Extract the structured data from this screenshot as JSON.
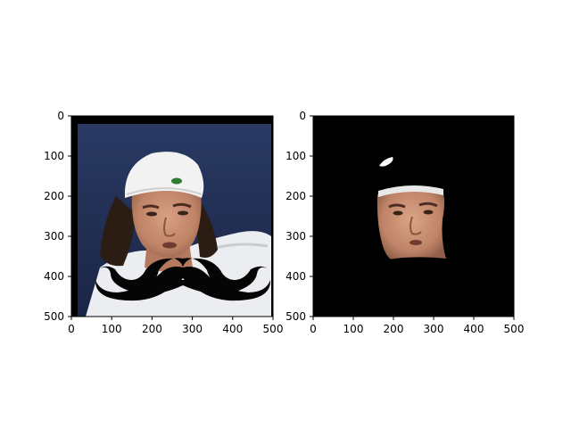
{
  "chart_data": [
    {
      "type": "image",
      "panel": "left",
      "content": "photo of a man wearing a white backwards cap, with a black mustache overlay",
      "xlim": [
        0,
        500
      ],
      "ylim": [
        500,
        0
      ],
      "xticks": [
        0,
        100,
        200,
        300,
        400,
        500
      ],
      "yticks": [
        0,
        100,
        200,
        300,
        400,
        500
      ],
      "xtick_labels": [
        "0",
        "100",
        "200",
        "300",
        "400",
        "500"
      ],
      "ytick_labels": [
        "0",
        "100",
        "200",
        "300",
        "400",
        "500"
      ]
    },
    {
      "type": "image",
      "panel": "right",
      "content": "segmentation mask: black background with the face region visible",
      "xlim": [
        0,
        500
      ],
      "ylim": [
        500,
        0
      ],
      "xticks": [
        0,
        100,
        200,
        300,
        400,
        500
      ],
      "yticks": [
        0,
        100,
        200,
        300,
        400,
        500
      ],
      "xtick_labels": [
        "0",
        "100",
        "200",
        "300",
        "400",
        "500"
      ],
      "ytick_labels": [
        "0",
        "100",
        "200",
        "300",
        "400",
        "500"
      ]
    }
  ],
  "colors": {
    "mustache": "#050505",
    "mask_background": "#000000",
    "photo_background": "#1f2d52",
    "skin": "#c98f73",
    "cap": "#f2f2f2"
  }
}
